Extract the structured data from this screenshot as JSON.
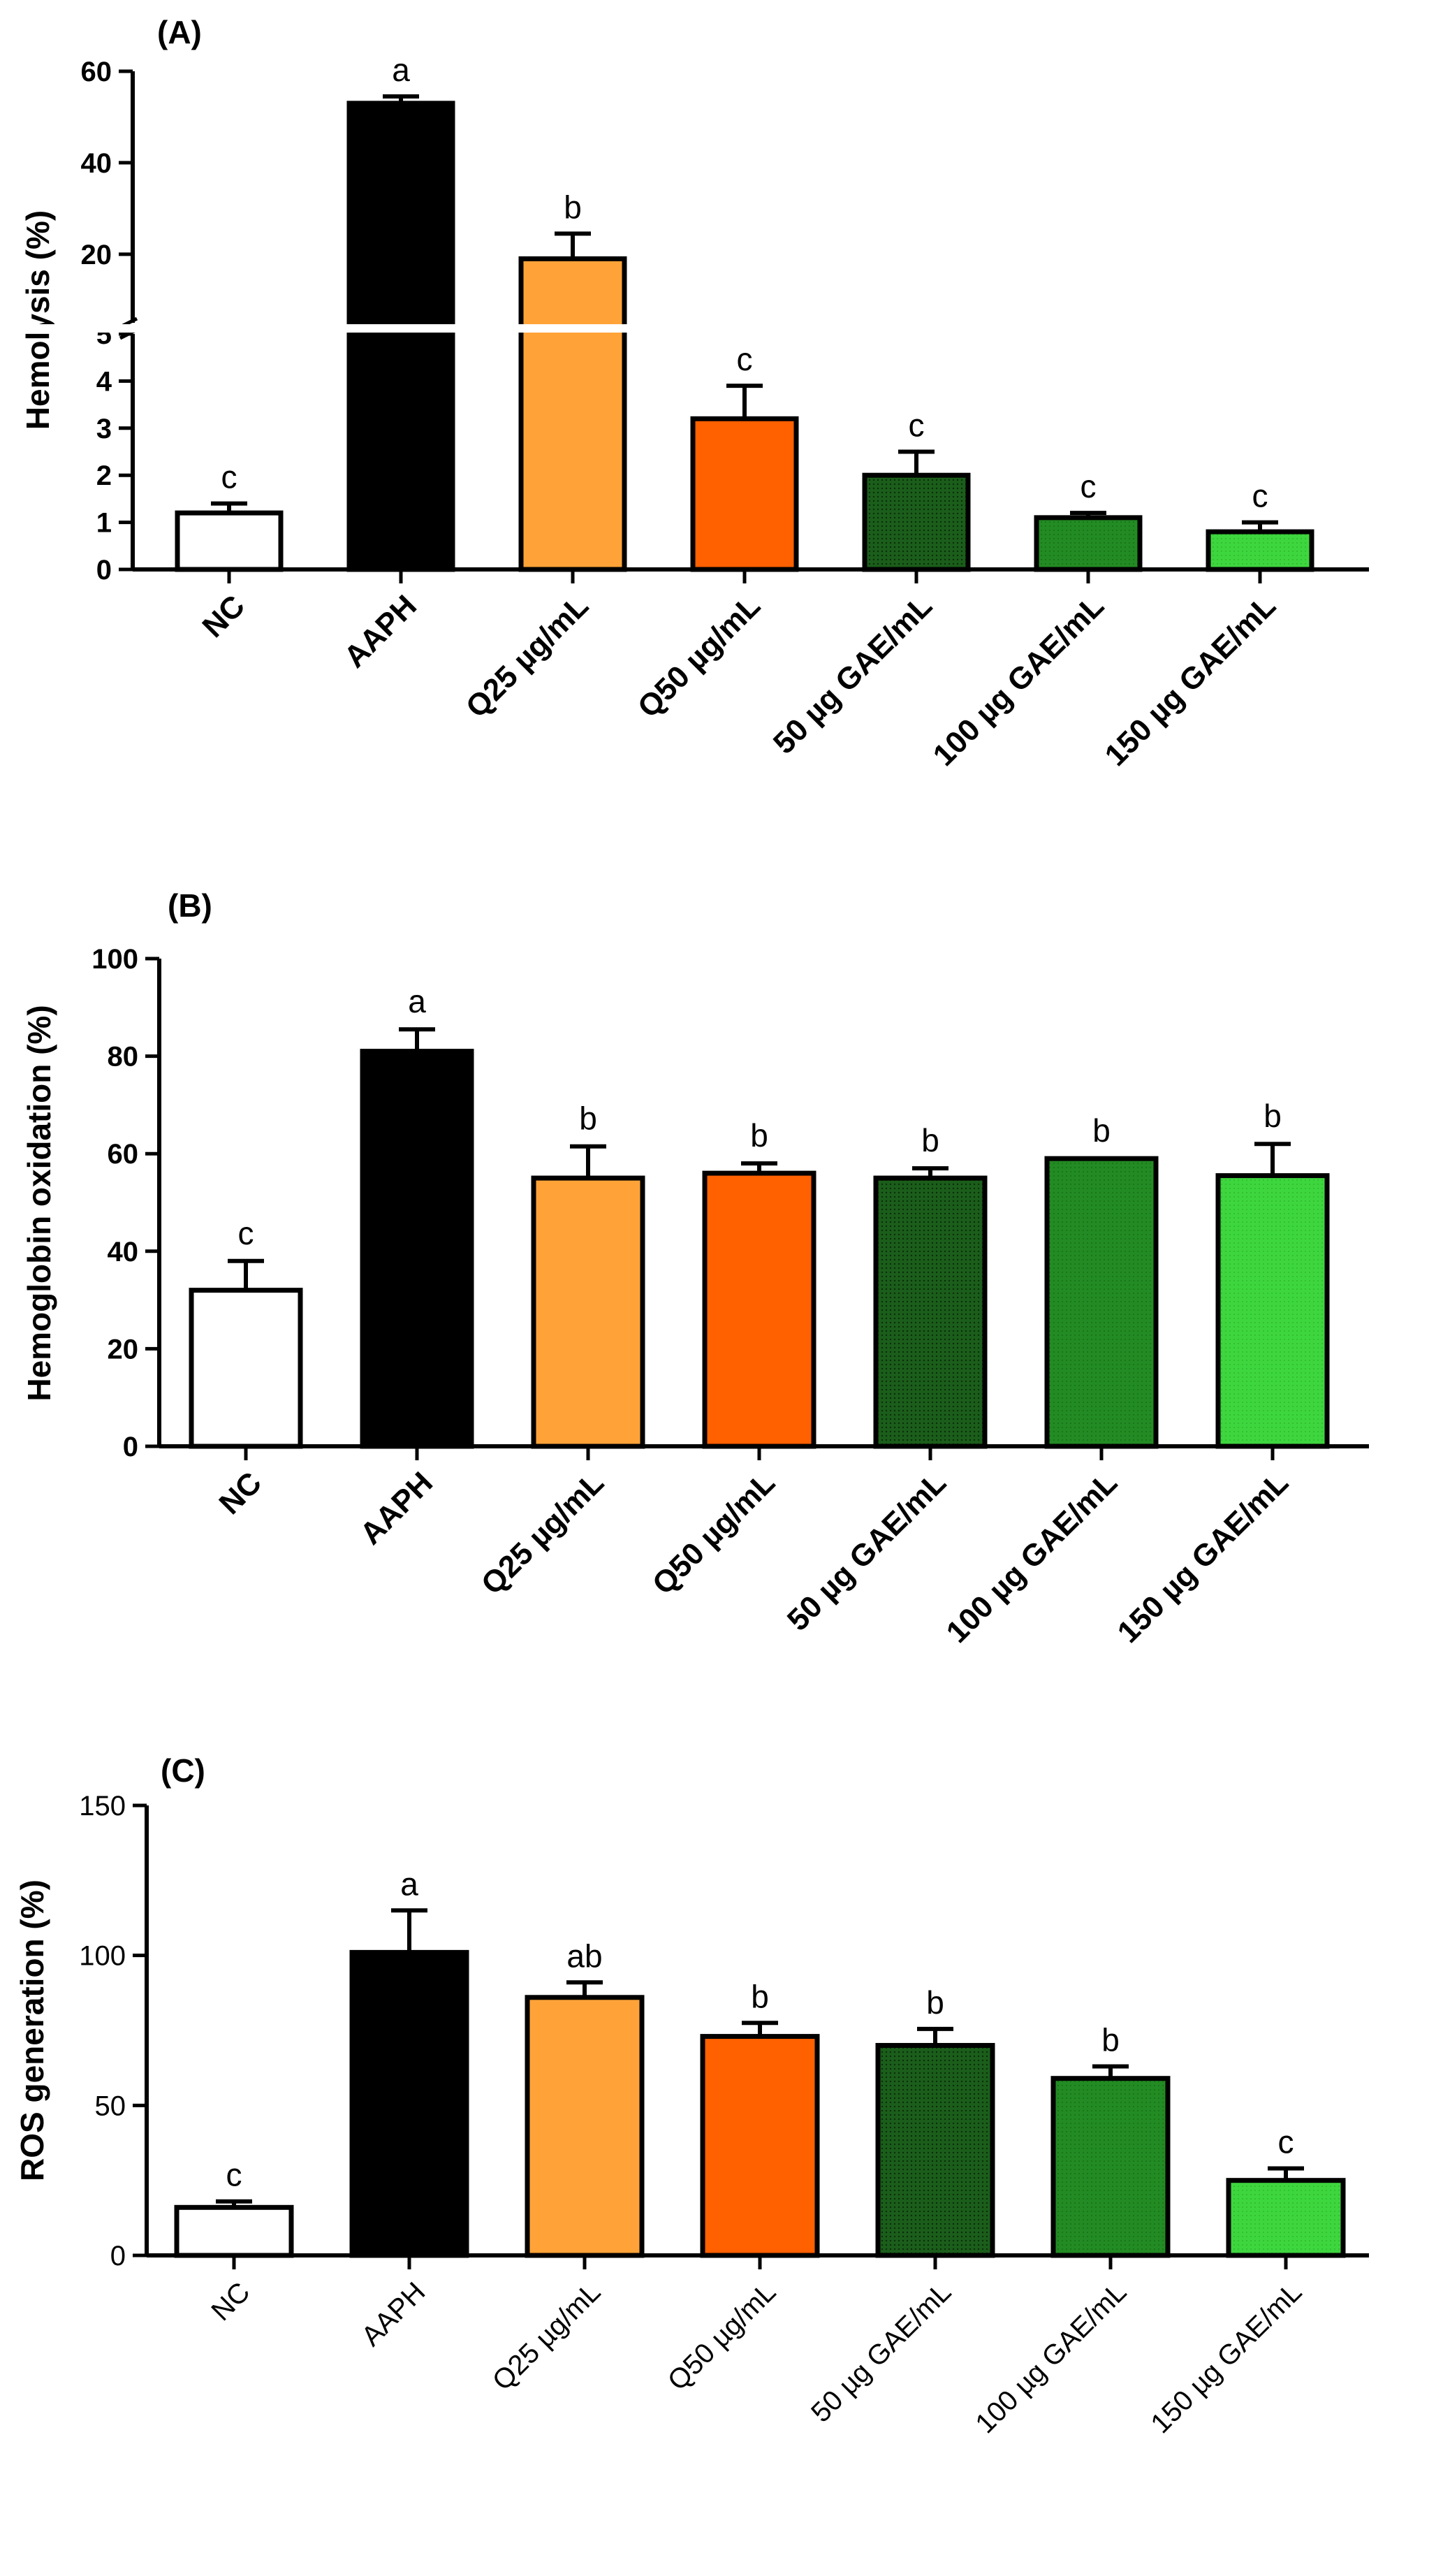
{
  "colors": {
    "NC": "#ffffff",
    "AAPH": "#000000",
    "Q25": "#ffa338",
    "Q50": "#ff6000",
    "GAE50": "#145414",
    "GAE100": "#228b22",
    "GAE150": "#32cd32"
  },
  "chart_data": [
    {
      "type": "bar",
      "panel": "(A)",
      "ylabel": "Hemolysis (%)",
      "axis_break": {
        "lower_range": [
          0,
          5
        ],
        "upper_range": [
          5,
          60
        ]
      },
      "lower_ticks": [
        "0",
        "1",
        "2",
        "3",
        "4",
        "5"
      ],
      "upper_ticks": [
        "20",
        "40",
        "60"
      ],
      "categories": [
        "NC",
        "AAPH",
        "Q25 µg/mL",
        "Q50 µg/mL",
        "50 µg GAE/mL",
        "100 µg GAE/mL",
        "150 µg GAE/mL"
      ],
      "values": [
        1.2,
        53,
        19,
        3.2,
        2.0,
        1.1,
        0.8
      ],
      "errors": [
        0.2,
        1.5,
        5.5,
        0.7,
        0.5,
        0.1,
        0.2
      ],
      "letters": [
        "c",
        "a",
        "b",
        "c",
        "c",
        "c",
        "c"
      ]
    },
    {
      "type": "bar",
      "panel": "(B)",
      "ylabel": "Hemoglobin oxidation (%)",
      "ylim": [
        0,
        100
      ],
      "ticks": [
        "0",
        "20",
        "40",
        "60",
        "80",
        "100"
      ],
      "categories": [
        "NC",
        "AAPH",
        "Q25 µg/mL",
        "Q50 µg/mL",
        "50 µg GAE/mL",
        "100 µg GAE/mL",
        "150 µg GAE/mL"
      ],
      "values": [
        32,
        81,
        55,
        56,
        55,
        59,
        55.5
      ],
      "errors": [
        6,
        4.5,
        6.5,
        2,
        2,
        0,
        6.5
      ],
      "letters": [
        "c",
        "a",
        "b",
        "b",
        "b",
        "b",
        "b"
      ]
    },
    {
      "type": "bar",
      "panel": "(C)",
      "ylabel": "ROS generation (%)",
      "ylim": [
        0,
        150
      ],
      "ticks": [
        "0",
        "50",
        "100",
        "150"
      ],
      "categories": [
        "NC",
        "AAPH",
        "Q25 µg/mL",
        "Q50 µg/mL",
        "50 µg GAE/mL",
        "100 µg GAE/mL",
        "150 µg GAE/mL"
      ],
      "values": [
        16,
        101,
        86,
        73,
        70,
        59,
        25
      ],
      "errors": [
        2,
        14,
        5,
        4.5,
        5.5,
        4,
        4
      ],
      "letters": [
        "c",
        "a",
        "ab",
        "b",
        "b",
        "b",
        "c"
      ]
    }
  ]
}
